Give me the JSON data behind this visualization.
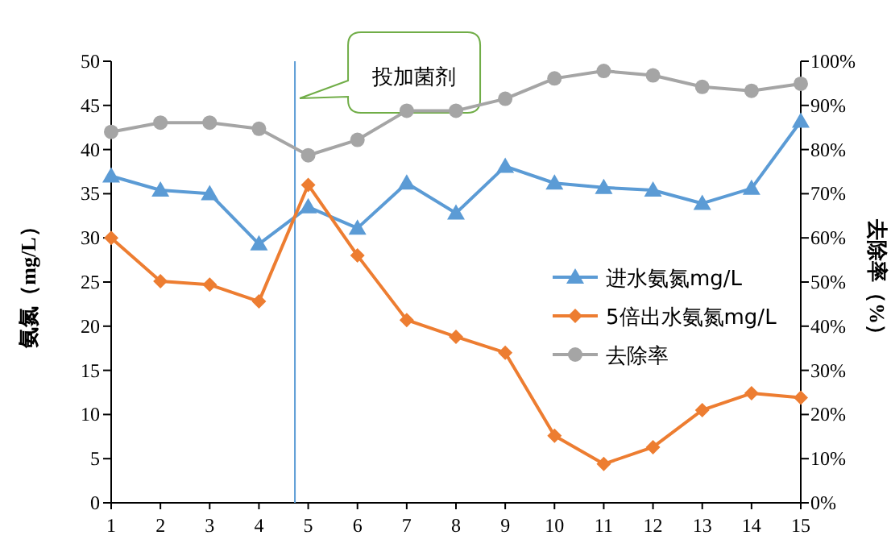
{
  "chart_data": {
    "type": "line",
    "ylabel": "氨氮（mg/L）",
    "y2label": "去除率（%）",
    "x": [
      1,
      2,
      3,
      4,
      5,
      6,
      7,
      8,
      9,
      10,
      11,
      12,
      13,
      14,
      15
    ],
    "xlim": [
      1,
      15
    ],
    "xticks": [
      1,
      2,
      3,
      4,
      5,
      6,
      7,
      8,
      9,
      10,
      11,
      12,
      13,
      14,
      15
    ],
    "ylim": [
      0,
      50
    ],
    "yticks": [
      0,
      5,
      10,
      15,
      20,
      25,
      30,
      35,
      40,
      45,
      50
    ],
    "y2lim": [
      0,
      100
    ],
    "y2ticks": [
      {
        "value": 0,
        "label": "0%"
      },
      {
        "value": 10,
        "label": "10%"
      },
      {
        "value": 20,
        "label": "20%"
      },
      {
        "value": 30,
        "label": "30%"
      },
      {
        "value": 40,
        "label": "40%"
      },
      {
        "value": 50,
        "label": "50%"
      },
      {
        "value": 60,
        "label": "60%"
      },
      {
        "value": 70,
        "label": "70%"
      },
      {
        "value": 80,
        "label": "80%"
      },
      {
        "value": 90,
        "label": "90%"
      },
      {
        "value": 100,
        "label": "100%"
      }
    ],
    "grid": false,
    "legend": "right",
    "line_style": "solid",
    "series": [
      {
        "name": "进水氨氮mg/L",
        "color": "#5b9bd5",
        "marker": "triangle",
        "values": [
          37.0,
          35.4,
          35.0,
          29.3,
          33.5,
          31.1,
          36.2,
          32.8,
          38.1,
          36.2,
          35.7,
          35.4,
          33.9,
          35.6,
          43.2
        ]
      },
      {
        "name": "5倍出水氨氮mg/L",
        "color": "#ed7d31",
        "marker": "diamond",
        "values": [
          30.0,
          25.1,
          24.7,
          22.8,
          36.0,
          28.0,
          20.7,
          18.8,
          17.0,
          7.6,
          4.4,
          6.3,
          10.5,
          12.4,
          11.9
        ]
      },
      {
        "name": "去除率",
        "color": "#a5a5a5",
        "marker": "circle",
        "axis": "y2",
        "values": [
          84.0,
          86.1,
          86.1,
          84.7,
          78.7,
          82.2,
          88.8,
          88.8,
          91.5,
          96.1,
          97.8,
          96.8,
          94.2,
          93.3,
          94.9
        ]
      }
    ],
    "ref_lines": [
      {
        "axis": "x",
        "value": 4.73,
        "color": "#5b9bd5"
      }
    ],
    "annotations": [
      "投加菌剂"
    ]
  }
}
